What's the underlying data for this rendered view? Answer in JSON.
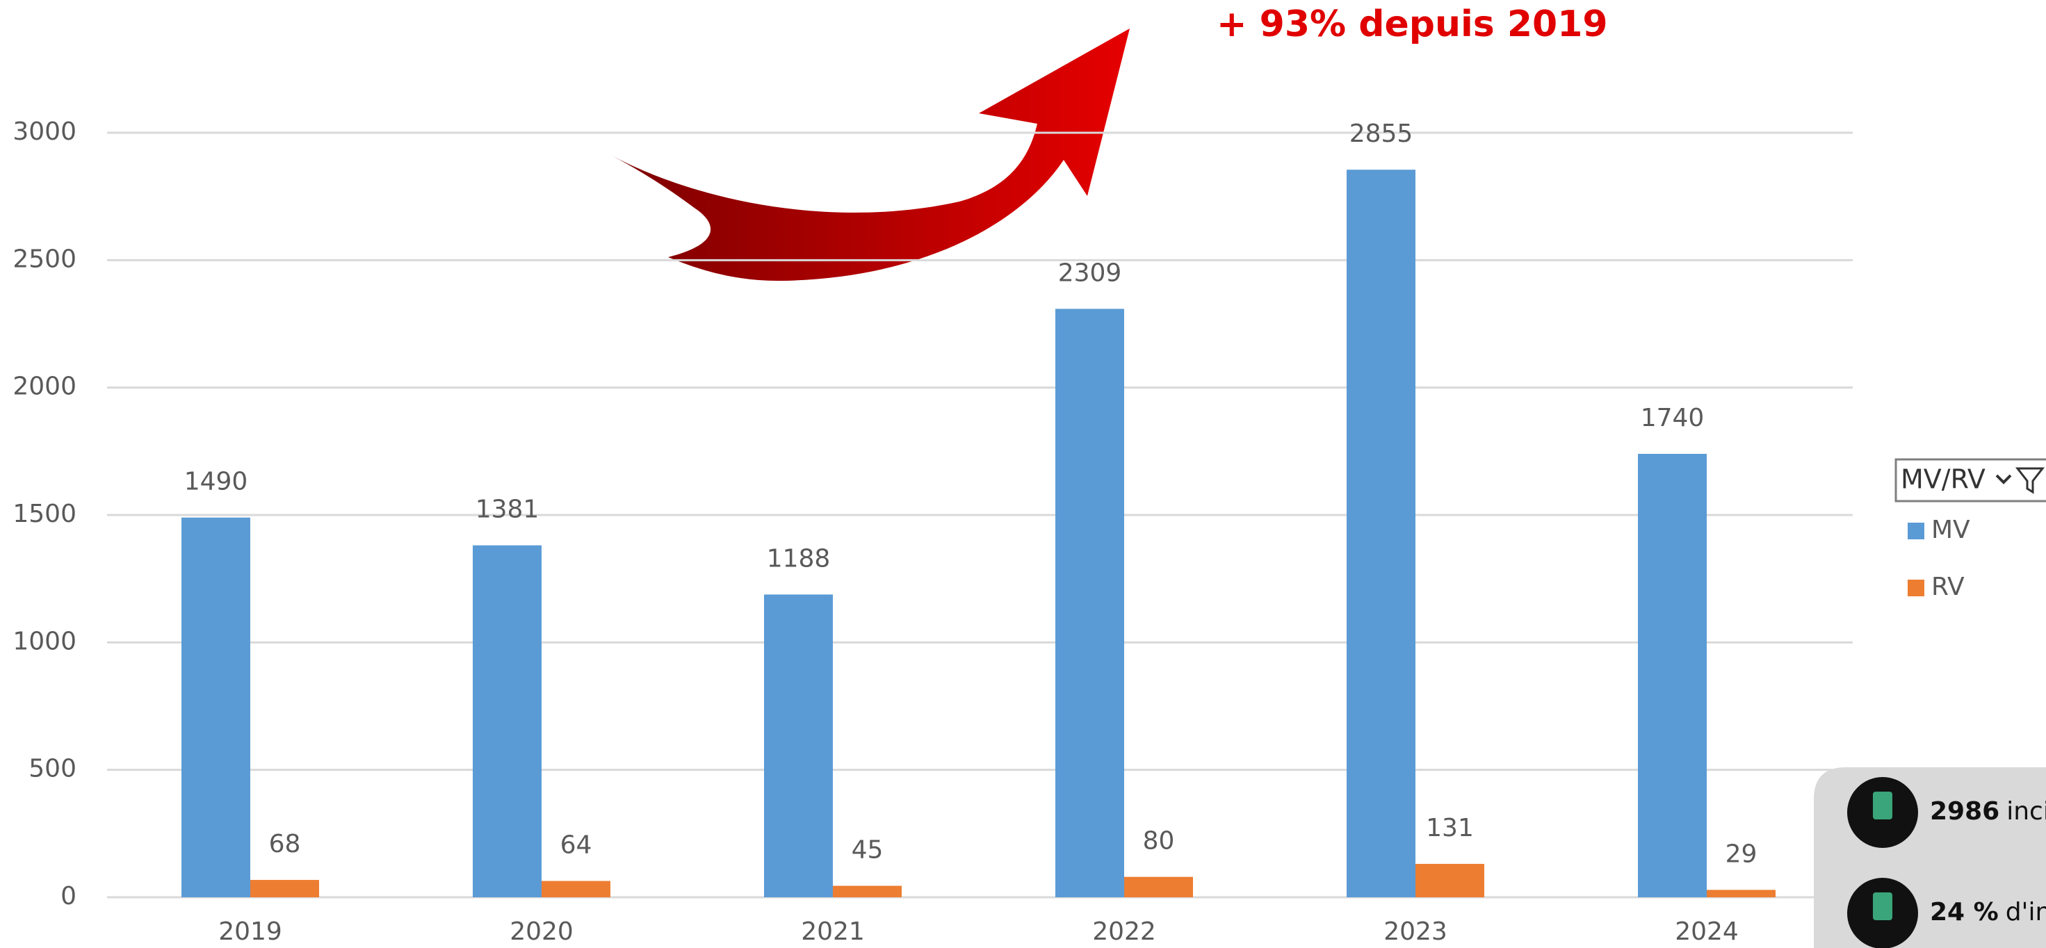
{
  "chart_data": {
    "type": "bar",
    "annotation": "+ 93% depuis 2019",
    "categories": [
      "2019",
      "2020",
      "2021",
      "2022",
      "2023",
      "2024"
    ],
    "series": [
      {
        "name": "MV",
        "color": "#5b9bd5",
        "values": [
          1490,
          1381,
          1188,
          2309,
          2855,
          1740
        ]
      },
      {
        "name": "RV",
        "color": "#ed7d31",
        "values": [
          68,
          64,
          45,
          80,
          131,
          29
        ]
      }
    ],
    "ylim": [
      0,
      3000
    ],
    "yticks": [
      0,
      500,
      1000,
      1500,
      2000,
      2500,
      3000
    ],
    "grid": true,
    "legend_title": "MV/RV",
    "legend": "right"
  },
  "panel": {
    "items": [
      {
        "bold": "2986",
        "text": "inci"
      },
      {
        "bold": "24 %",
        "text": "d'inc"
      }
    ]
  }
}
